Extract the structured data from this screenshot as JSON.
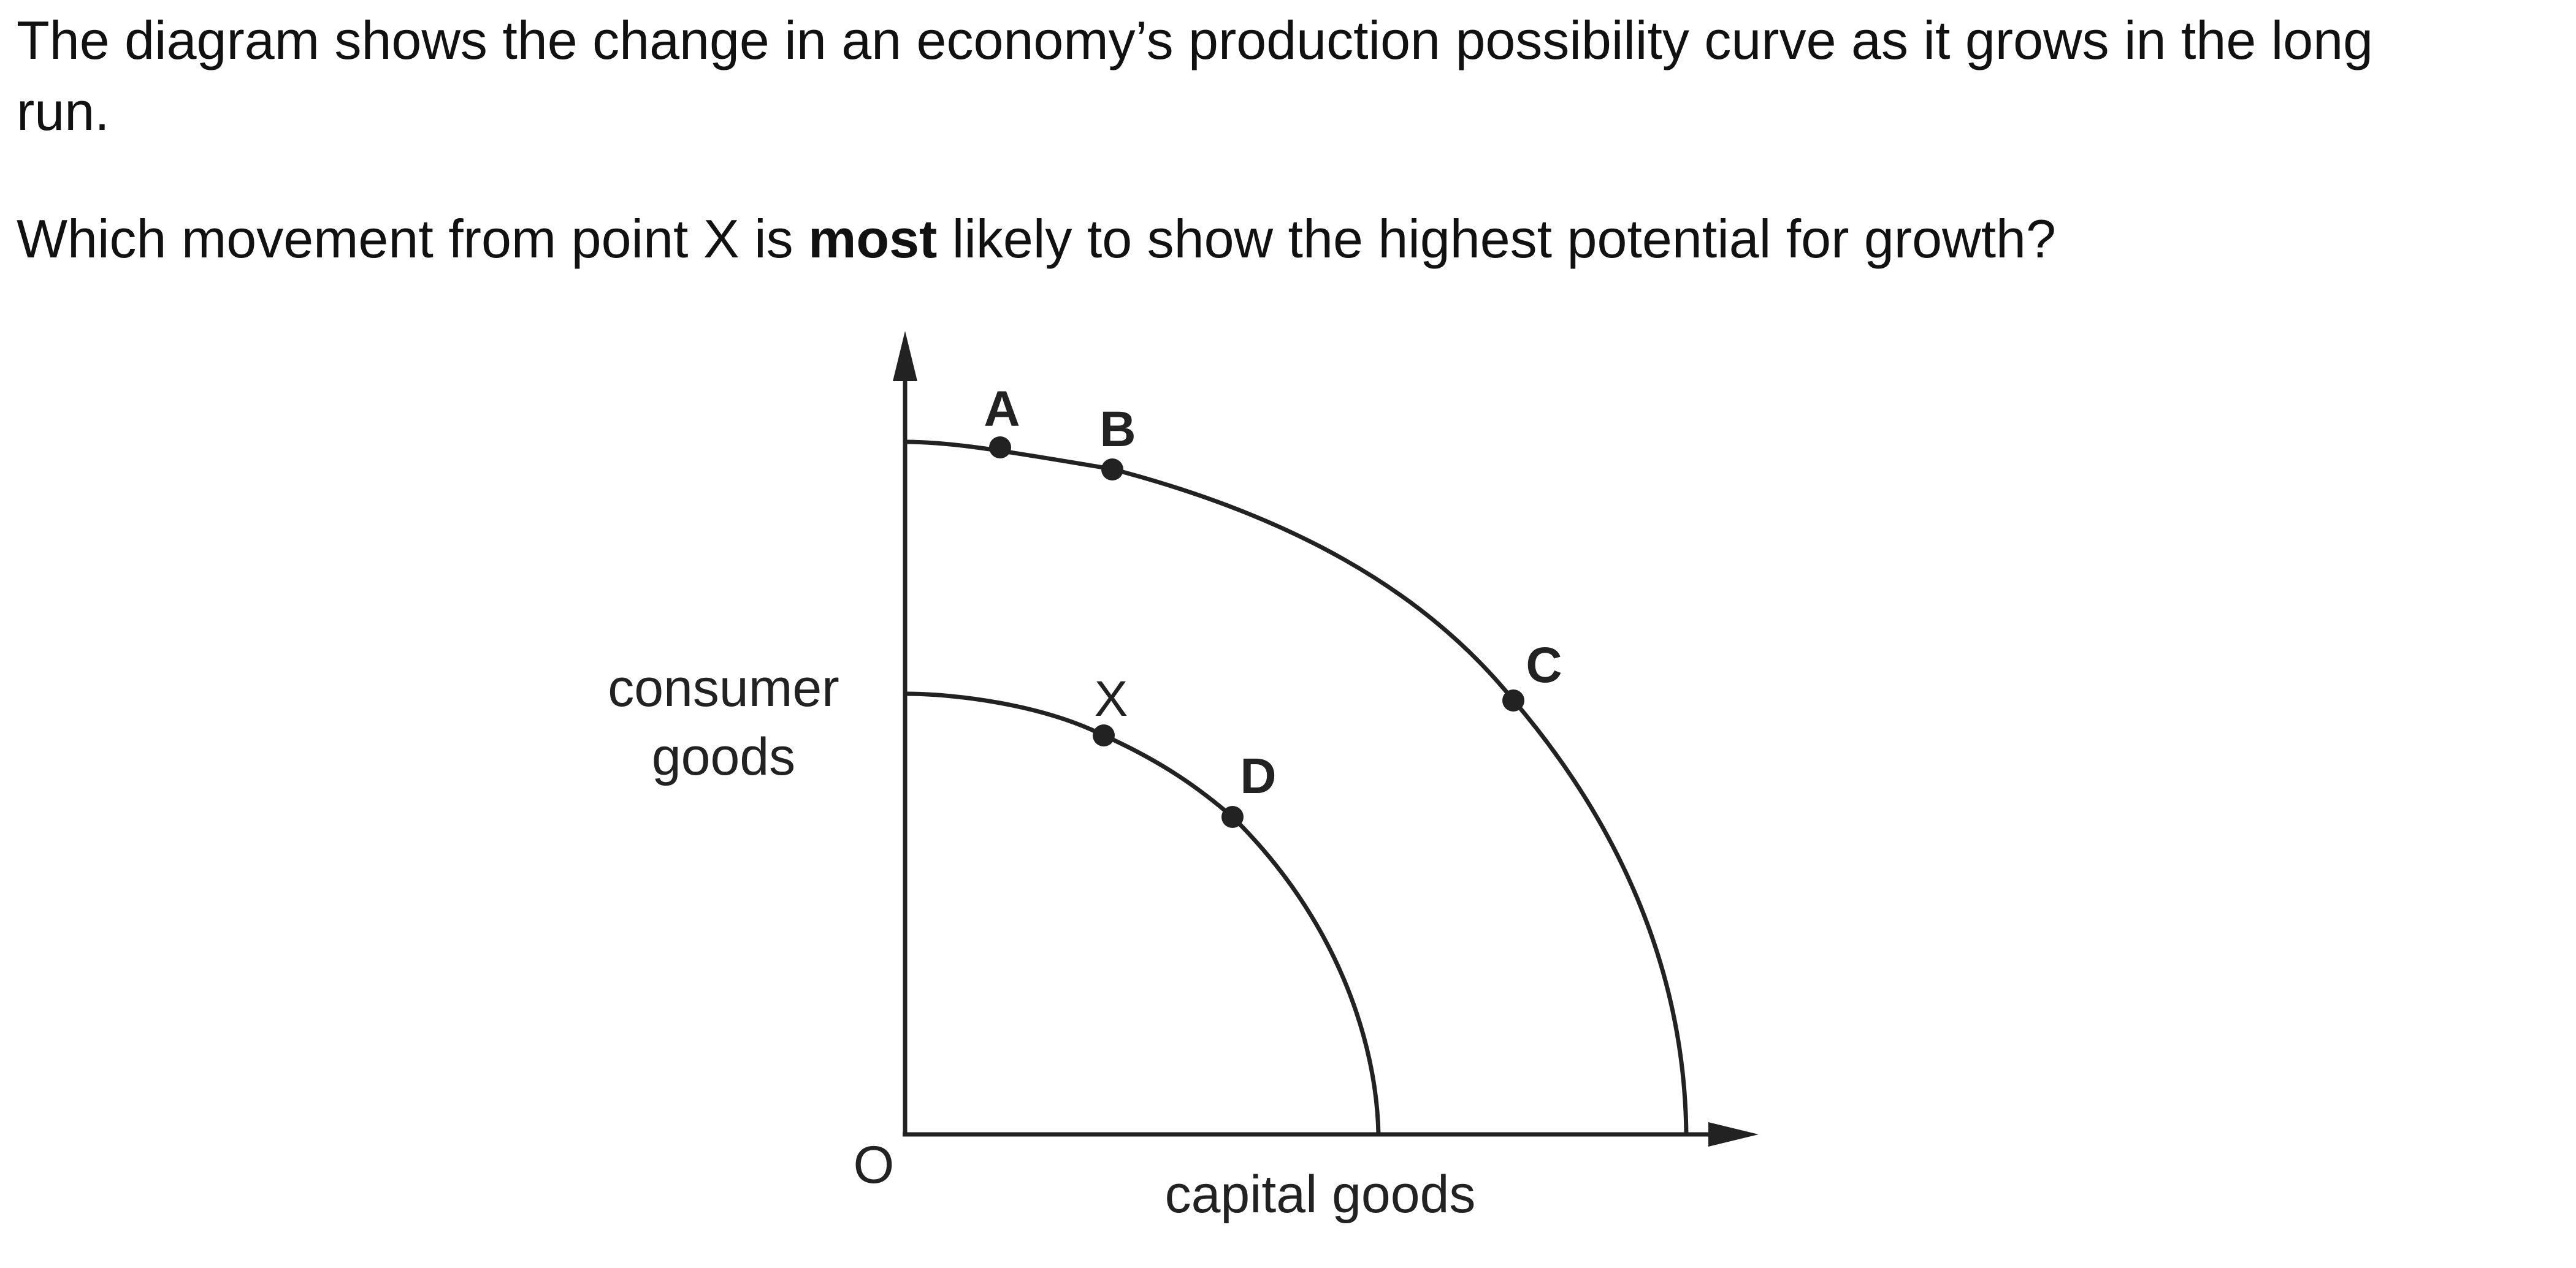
{
  "question": {
    "intro": "The diagram shows the change in an economy’s production possibility curve as it grows in the long run.",
    "ask_before": "Which movement from point X is ",
    "ask_emphasis": "most",
    "ask_after": " likely to show the highest potential for growth?"
  },
  "diagram": {
    "y_axis_label_line1": "consumer",
    "y_axis_label_line2": "goods",
    "x_axis_label": "capital goods",
    "origin_label": "O",
    "points": {
      "A": "A",
      "B": "B",
      "C": "C",
      "D": "D",
      "X": "X"
    },
    "curves": [
      "inner production possibility curve",
      "outer production possibility curve"
    ]
  }
}
